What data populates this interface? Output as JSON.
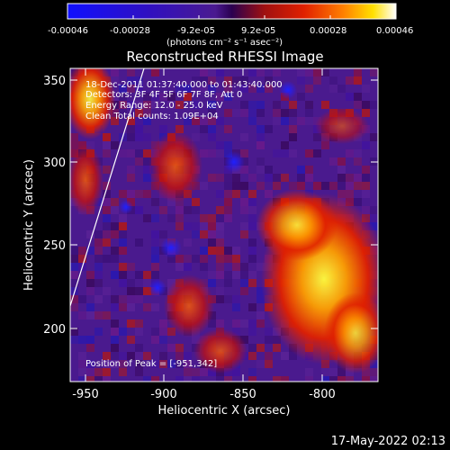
{
  "colorbar": {
    "tick_labels": [
      "-0.00046",
      "-0.00028",
      "-9.2e-05",
      "9.2e-05",
      "0.00028",
      "0.00046"
    ],
    "unit_label": "(photons cm⁻² s⁻¹ asec⁻²)"
  },
  "plot": {
    "title": "Reconstructed RHESSI Image",
    "xlabel": "Heliocentric X (arcsec)",
    "ylabel": "Heliocentric Y (arcsec)",
    "x_ticks": [
      "-950",
      "-900",
      "-850",
      "-800"
    ],
    "y_ticks": [
      "200",
      "250",
      "300",
      "350"
    ],
    "x_range": [
      -960,
      -765
    ],
    "y_range": [
      165,
      360
    ],
    "colormap": "blue-purple-red-orange-yellow-white"
  },
  "annotations": {
    "time": "18-Dec-2011 01:37:40.000 to 01:43:40.000",
    "detectors": "Detectors: 3F 4F 5F 6F 7F 8F, Att 0",
    "energy": "Energy Range: 12.0 - 25.0 keV",
    "clean": "Clean    Total counts: 1.09E+04",
    "peak": "Position of Peak = [-951,342]"
  },
  "footer": {
    "timestamp": "17-May-2022 02:13"
  }
}
